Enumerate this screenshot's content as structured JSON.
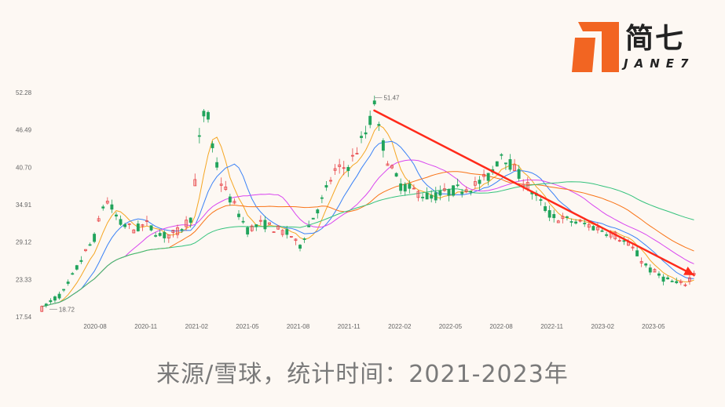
{
  "caption": "来源/雪球，统计时间：2021-2023年",
  "logo": {
    "cn": "简七",
    "en": "JANE7",
    "color": "#f26522"
  },
  "chart_data": {
    "type": "candlestick",
    "title": "",
    "y_ticks": [
      "52.28",
      "46.49",
      "40.70",
      "34.91",
      "29.12",
      "23.33",
      "17.54"
    ],
    "y_tick_values": [
      52.28,
      46.49,
      40.7,
      34.91,
      29.12,
      23.33,
      17.54
    ],
    "ylim": [
      17.54,
      52.28
    ],
    "x_ticks": [
      "2020-08",
      "2020-11",
      "2021-02",
      "2021-05",
      "2021-08",
      "2021-11",
      "2022-02",
      "2022-05",
      "2022-08",
      "2022-11",
      "2023-02",
      "2023-05"
    ],
    "x_tick_index": [
      0,
      1,
      2,
      3,
      4,
      5,
      6,
      7,
      8,
      9,
      10,
      11
    ],
    "x_range_index": [
      -1.1,
      11.9
    ],
    "annotations": [
      {
        "text": "51.47",
        "x": 5.5,
        "y": 51.47,
        "type": "max"
      },
      {
        "text": "18.72",
        "x": -0.9,
        "y": 18.72,
        "type": "min"
      }
    ],
    "price_path": [
      [
        -1.05,
        18.8
      ],
      [
        -0.6,
        21.5
      ],
      [
        -0.3,
        26
      ],
      [
        0,
        30
      ],
      [
        0.2,
        36
      ],
      [
        0.5,
        32
      ],
      [
        0.8,
        31
      ],
      [
        1.0,
        32
      ],
      [
        1.3,
        30
      ],
      [
        1.6,
        30.5
      ],
      [
        1.9,
        33
      ],
      [
        2.0,
        41
      ],
      [
        2.1,
        48
      ],
      [
        2.2,
        50
      ],
      [
        2.3,
        44
      ],
      [
        2.5,
        38
      ],
      [
        2.8,
        34
      ],
      [
        3.0,
        31
      ],
      [
        3.3,
        32
      ],
      [
        3.6,
        31
      ],
      [
        3.9,
        30
      ],
      [
        4.0,
        28
      ],
      [
        4.3,
        33
      ],
      [
        4.5,
        36
      ],
      [
        4.7,
        40
      ],
      [
        5.0,
        41
      ],
      [
        5.2,
        44
      ],
      [
        5.4,
        47
      ],
      [
        5.5,
        51.47
      ],
      [
        5.6,
        46
      ],
      [
        5.8,
        41
      ],
      [
        6.0,
        38
      ],
      [
        6.3,
        37
      ],
      [
        6.6,
        36
      ],
      [
        7.0,
        37
      ],
      [
        7.3,
        37.5
      ],
      [
        7.5,
        38
      ],
      [
        7.8,
        39.5
      ],
      [
        8.0,
        43
      ],
      [
        8.2,
        41
      ],
      [
        8.5,
        38
      ],
      [
        8.8,
        35
      ],
      [
        9.0,
        33
      ],
      [
        9.3,
        32.5
      ],
      [
        9.6,
        32
      ],
      [
        10.0,
        31
      ],
      [
        10.3,
        30
      ],
      [
        10.6,
        28
      ],
      [
        10.9,
        25
      ],
      [
        11.2,
        23.5
      ],
      [
        11.5,
        22.5
      ],
      [
        11.65,
        22.8
      ],
      [
        11.8,
        24.5
      ]
    ],
    "candle_count": 150,
    "up_color": "#e8484b",
    "down_color": "#21a45c",
    "moving_averages": [
      {
        "window": 5,
        "color": "#f5a623"
      },
      {
        "window": 10,
        "color": "#3b82f6"
      },
      {
        "window": 20,
        "color": "#d946ef"
      },
      {
        "window": 30,
        "color": "#f97316"
      },
      {
        "window": 60,
        "color": "#34c27c"
      }
    ],
    "trend_line": {
      "from": [
        5.5,
        49.5
      ],
      "to": [
        11.8,
        24.0
      ],
      "color": "#ff2a1a"
    },
    "grid": false
  }
}
